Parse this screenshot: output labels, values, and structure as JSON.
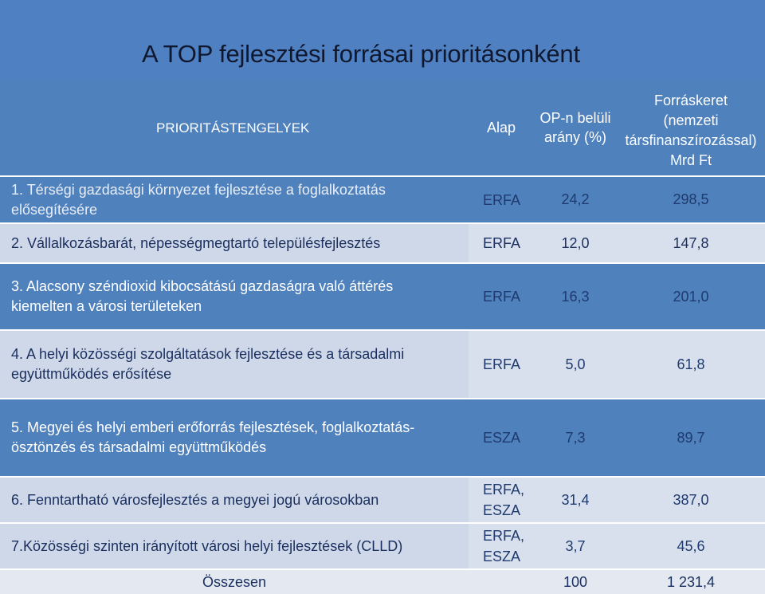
{
  "title": "A TOP fejlesztési forrásai prioritásonként",
  "header": {
    "prio": "PRIORITÁSTENGELYEK",
    "alap": "Alap",
    "ratio_line1": "OP-n belüli",
    "ratio_line2": "arány (%)",
    "budget_line1": "Forráskeret",
    "budget_line2": "(nemzeti",
    "budget_line3": "társfinanszírozással)",
    "budget_line4": "Mrd Ft"
  },
  "rows": [
    {
      "prio_line1": "1. Térségi gazdasági környezet fejlesztése a foglalkoztatás",
      "prio_line2": "elősegítésére",
      "fund_line1": "ERFA",
      "fund_line2": "",
      "ratio": "24,2",
      "budget": "298,5"
    },
    {
      "prio_line1": "2. Vállalkozásbarát, népességmegtartó településfejlesztés",
      "prio_line2": "",
      "fund_line1": "ERFA",
      "fund_line2": "",
      "ratio": "12,0",
      "budget": "147,8"
    },
    {
      "prio_line1": "3. Alacsony széndioxid kibocsátású gazdaságra való áttérés",
      "prio_line2": "kiemelten a városi területeken",
      "fund_line1": "ERFA",
      "fund_line2": "",
      "ratio": "16,3",
      "budget": "201,0"
    },
    {
      "prio_line1": "4. A helyi közösségi szolgáltatások  fejlesztése és a társadalmi",
      "prio_line2": "együttműködés erősítése",
      "fund_line1": "ERFA",
      "fund_line2": "",
      "ratio": "5,0",
      "budget": "61,8"
    },
    {
      "prio_line1": "5. Megyei és helyi emberi erőforrás fejlesztések, foglalkoztatás-",
      "prio_line2": "ösztönzés  és társadalmi együttműködés",
      "fund_line1": "ESZA",
      "fund_line2": "",
      "ratio": "7,3",
      "budget": "89,7"
    },
    {
      "prio_line1": "6. Fenntartható  városfejlesztés a megyei jogú városokban",
      "prio_line2": "",
      "fund_line1": "ERFA,",
      "fund_line2": "ESZA",
      "ratio": "31,4",
      "budget": "387,0"
    },
    {
      "prio_line1": "7.Közösségi szinten irányított városi helyi fejlesztések (CLLD)",
      "prio_line2": "",
      "fund_line1": "ERFA,",
      "fund_line2": "ESZA",
      "ratio": "3,7",
      "budget": "45,6"
    }
  ],
  "total": {
    "label": "Összesen",
    "ratio": "100",
    "budget": "1 231,4"
  }
}
